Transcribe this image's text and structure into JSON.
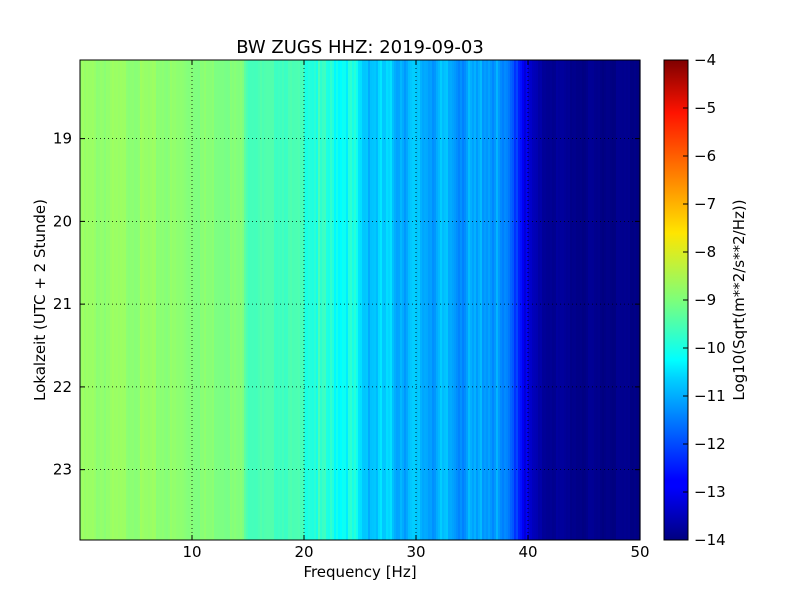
{
  "chart_data": {
    "type": "heatmap",
    "title": "BW ZUGS HHZ: 2019-09-03",
    "xlabel": "Frequency [Hz]",
    "ylabel": "Lokalzeit (UTC + 2 Stunde)",
    "xlim": [
      0,
      50
    ],
    "ylim": [
      18.05,
      23.85
    ],
    "y_inverted": true,
    "xticks": [
      10,
      20,
      30,
      40,
      50
    ],
    "xtick_labels": [
      "10",
      "20",
      "30",
      "40",
      "50"
    ],
    "yticks": [
      19,
      20,
      21,
      22,
      23
    ],
    "ytick_labels": [
      "19",
      "20",
      "21",
      "22",
      "23"
    ],
    "grid": true,
    "colormap": "jet",
    "colorbar": {
      "label": "Log10(Sqrt(m**2/s**2/Hz))",
      "range": [
        -14,
        -4
      ],
      "ticks": [
        -4,
        -5,
        -6,
        -7,
        -8,
        -9,
        -10,
        -11,
        -12,
        -13,
        -14
      ],
      "tick_labels": [
        "−4",
        "−5",
        "−6",
        "−7",
        "−8",
        "−9",
        "−10",
        "−11",
        "−12",
        "−13",
        "−14"
      ]
    },
    "frequency_profile": {
      "frequency_hz": [
        0,
        5,
        10,
        14.5,
        15,
        20,
        22,
        24.5,
        25,
        27,
        30,
        33,
        35.5,
        36,
        37,
        38,
        39,
        40,
        41,
        45,
        50
      ],
      "log10_amplitude": [
        -8.8,
        -8.8,
        -8.9,
        -9.0,
        -9.5,
        -9.6,
        -10.0,
        -10.1,
        -10.7,
        -10.8,
        -11.0,
        -11.1,
        -11.3,
        -11.0,
        -11.2,
        -11.7,
        -12.0,
        -13.2,
        -13.7,
        -13.9,
        -13.9
      ]
    }
  }
}
